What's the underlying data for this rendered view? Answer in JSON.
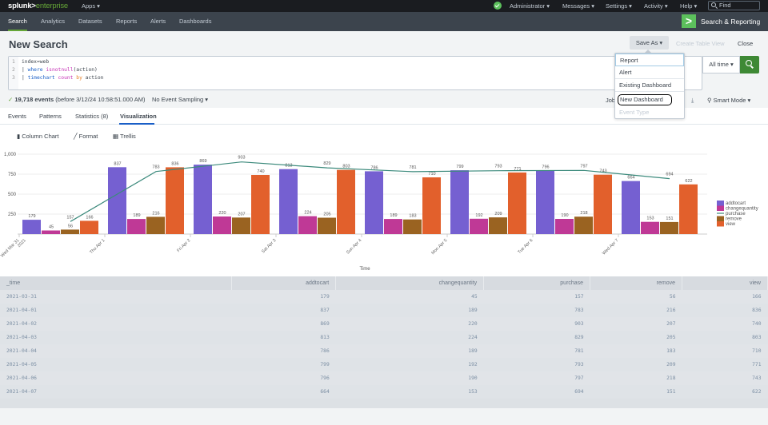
{
  "topbar": {
    "logo_main": "splunk>",
    "logo_sub": "enterprise",
    "apps": "Apps ▾",
    "menu": [
      "Administrator ▾",
      "Messages ▾",
      "Settings ▾",
      "Activity ▾",
      "Help ▾"
    ],
    "find_placeholder": "Find"
  },
  "navbar": {
    "items": [
      "Search",
      "Analytics",
      "Datasets",
      "Reports",
      "Alerts",
      "Dashboards"
    ],
    "active": "Search",
    "app_name": "Search & Reporting",
    "app_badge": ">"
  },
  "page": {
    "title": "New Search",
    "save_as": "Save As ▾",
    "create_table_view": "Create Table View",
    "close": "Close"
  },
  "search": {
    "lines": [
      {
        "n": "1",
        "text": "index=web"
      },
      {
        "n": "2",
        "text": "| where isnotnull(action)"
      },
      {
        "n": "3",
        "text": "| timechart count by action"
      }
    ],
    "time_range": "All time ▾"
  },
  "save_as_menu": {
    "items": [
      "Report",
      "Alert",
      "Existing Dashboard",
      "New Dashboard",
      "Event Type"
    ],
    "focused": "Report",
    "circled": "New Dashboard",
    "disabled": "Event Type"
  },
  "status": {
    "check": "✓",
    "events": "19,718 events",
    "before": "(before 3/12/24 10:58:51.000 AM)",
    "sampling": "No Event Sampling ▾",
    "job": "Job",
    "download": "⤓",
    "mode": "Smart Mode ▾"
  },
  "tabs": {
    "items": [
      "Events",
      "Patterns",
      "Statistics (8)",
      "Visualization"
    ],
    "active": "Visualization"
  },
  "viz_toolbar": {
    "chart_type": "Column Chart",
    "format": "Format",
    "trellis": "Trellis"
  },
  "colors": {
    "addtocart": "#7560d1",
    "changequantity": "#bf3996",
    "purchase": "#3c8a7c",
    "remove": "#9a6321",
    "view": "#e2602c",
    "accent_green": "#65a637"
  },
  "chart_data": {
    "type": "bar",
    "title": "",
    "xlabel": "Time",
    "ylabel": "",
    "ylim": [
      0,
      1000
    ],
    "yticks": [
      "250",
      "500",
      "750",
      "1,000"
    ],
    "categories": [
      "Wed Mar 31 2021",
      "Thu Apr 1",
      "Fri Apr 2",
      "Sat Apr 3",
      "Sun Apr 4",
      "Mon Apr 5",
      "Tue Apr 6",
      "Wed Apr 7"
    ],
    "series": [
      {
        "name": "addtocart",
        "type": "column",
        "values": [
          179,
          837,
          869,
          813,
          786,
          799,
          796,
          664
        ]
      },
      {
        "name": "changequantity",
        "type": "column",
        "values": [
          45,
          189,
          220,
          224,
          189,
          192,
          190,
          153
        ]
      },
      {
        "name": "purchase",
        "type": "line",
        "values": [
          157,
          783,
          903,
          829,
          781,
          793,
          797,
          694
        ]
      },
      {
        "name": "remove",
        "type": "column",
        "values": [
          56,
          216,
          207,
          205,
          183,
          209,
          218,
          151
        ]
      },
      {
        "name": "view",
        "type": "column",
        "values": [
          166,
          836,
          740,
          803,
          710,
          771,
          743,
          622
        ]
      }
    ],
    "legend": [
      "addtocart",
      "changequantity",
      "purchase",
      "remove",
      "view"
    ],
    "legend_position": "right",
    "grid": true
  },
  "table": {
    "columns": [
      "_time",
      "addtocart",
      "changequantity",
      "purchase",
      "remove",
      "view"
    ],
    "rows": [
      [
        "2021-03-31",
        "179",
        "45",
        "157",
        "56",
        "166"
      ],
      [
        "2021-04-01",
        "837",
        "189",
        "783",
        "216",
        "836"
      ],
      [
        "2021-04-02",
        "869",
        "220",
        "903",
        "207",
        "740"
      ],
      [
        "2021-04-03",
        "813",
        "224",
        "829",
        "205",
        "803"
      ],
      [
        "2021-04-04",
        "786",
        "189",
        "781",
        "183",
        "710"
      ],
      [
        "2021-04-05",
        "799",
        "192",
        "793",
        "209",
        "771"
      ],
      [
        "2021-04-06",
        "796",
        "190",
        "797",
        "218",
        "743"
      ],
      [
        "2021-04-07",
        "664",
        "153",
        "694",
        "151",
        "622"
      ]
    ]
  }
}
